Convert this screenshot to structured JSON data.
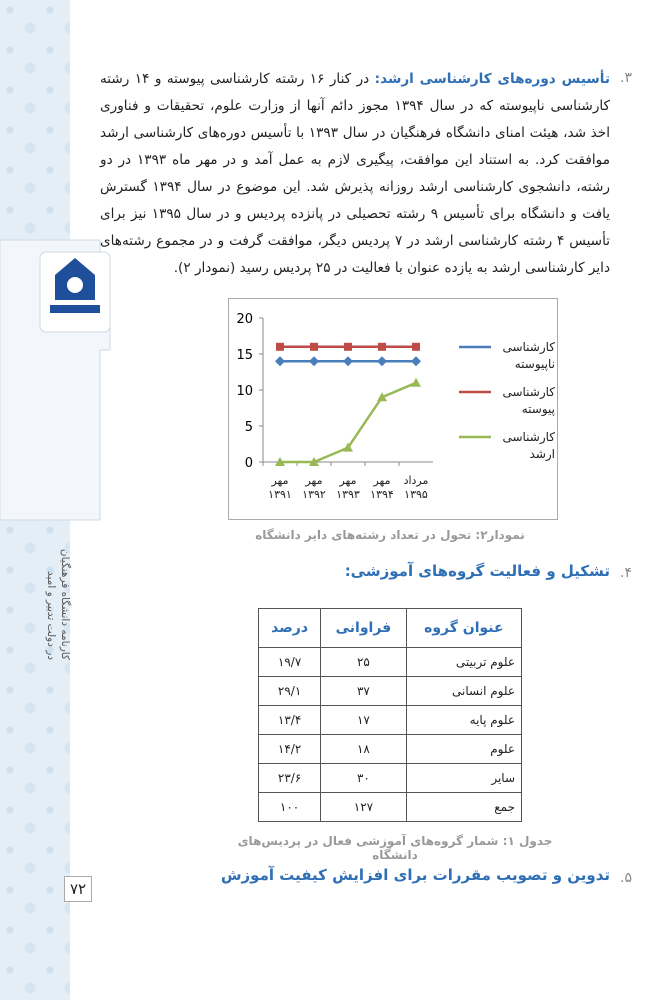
{
  "sidebar": {
    "line1": "کارنامه دانشگاه فرهنگیان",
    "line2": "در دولت تدبیر و امید"
  },
  "section3": {
    "number": "۳.",
    "heading": "تأسیس دوره‌های کارشناسی ارشد:",
    "body": "در کنار ۱۶ رشته کارشناسی پیوسته و ۱۴ رشته کارشناسی ناپیوسته که در سال ۱۳۹۴ مجوز دائم آنها از وزارت علوم، تحقیقات و فناوری اخذ شد، هیئت امنای دانشگاه فرهنگیان در سال ۱۳۹۳ با تأسیس دوره‌های کارشناسی ارشد موافقت کرد. به استناد این موافقت، پیگیری لازم به عمل آمد و در مهر ماه ۱۳۹۳ در دو رشته، دانشجوی کارشناسی ارشد روزانه پذیرش شد. این موضوع در سال ۱۳۹۴ گسترش یافت و دانشگاه برای تأسیس ۹ رشته تحصیلی در پانزده پردیس و در سال ۱۳۹۵ نیز برای تأسیس ۴ رشته کارشناسی ارشد در ۷ پردیس دیگر، موافقت گرفت و در مجموع رشته‌های دایر کارشناسی ارشد به یازده عنوان با فعالیت در ۲۵ پردیس رسید (نمودار ۲)."
  },
  "chart_data": {
    "type": "line",
    "categories": [
      "مهر ۱۳۹۱",
      "مهر ۱۳۹۲",
      "مهر ۱۳۹۳",
      "مهر ۱۳۹۴",
      "مرداد ۱۳۹۵"
    ],
    "series": [
      {
        "name": "کارشناسی ناپیوسته",
        "color": "#4a7ebb",
        "marker": "diamond",
        "values": [
          14,
          14,
          14,
          14,
          14
        ]
      },
      {
        "name": "کارشناسی پیوسته",
        "color": "#be4b48",
        "marker": "square",
        "values": [
          16,
          16,
          16,
          16,
          16
        ]
      },
      {
        "name": "کارشناسی ارشد",
        "color": "#98b954",
        "marker": "triangle",
        "values": [
          0,
          0,
          2,
          9,
          11
        ]
      }
    ],
    "ylim": [
      0,
      20
    ],
    "yticks": [
      0,
      5,
      10,
      15,
      20
    ],
    "grid": false,
    "legend": "right"
  },
  "chart_caption": "نمودار۲: تحول در تعداد رشته‌های دایر دانشگاه",
  "section4": {
    "number": "۴.",
    "heading": "تشکیل و فعالیت گروه‌های آموزشی:"
  },
  "table": {
    "header": [
      "عنوان گروه",
      "فراوانی",
      "درصد"
    ],
    "rows": [
      [
        "علوم تربیتی",
        "۲۵",
        "۱۹/۷"
      ],
      [
        "علوم انسانی",
        "۳۷",
        "۲۹/۱"
      ],
      [
        "علوم پایه",
        "۱۷",
        "۱۳/۴"
      ],
      [
        "علوم",
        "۱۸",
        "۱۴/۲"
      ],
      [
        "سایر",
        "۳۰",
        "۲۳/۶"
      ],
      [
        "جمع",
        "۱۲۷",
        "۱۰۰"
      ]
    ]
  },
  "table_caption": "جدول ۱: شمار گروه‌های آموزشی فعال در پردیس‌های دانشگاه",
  "section5": {
    "number": "۵.",
    "heading": "تدوین و تصویب مقررات برای افزایش کیفیت آموزش"
  },
  "page_number": "۷۲"
}
